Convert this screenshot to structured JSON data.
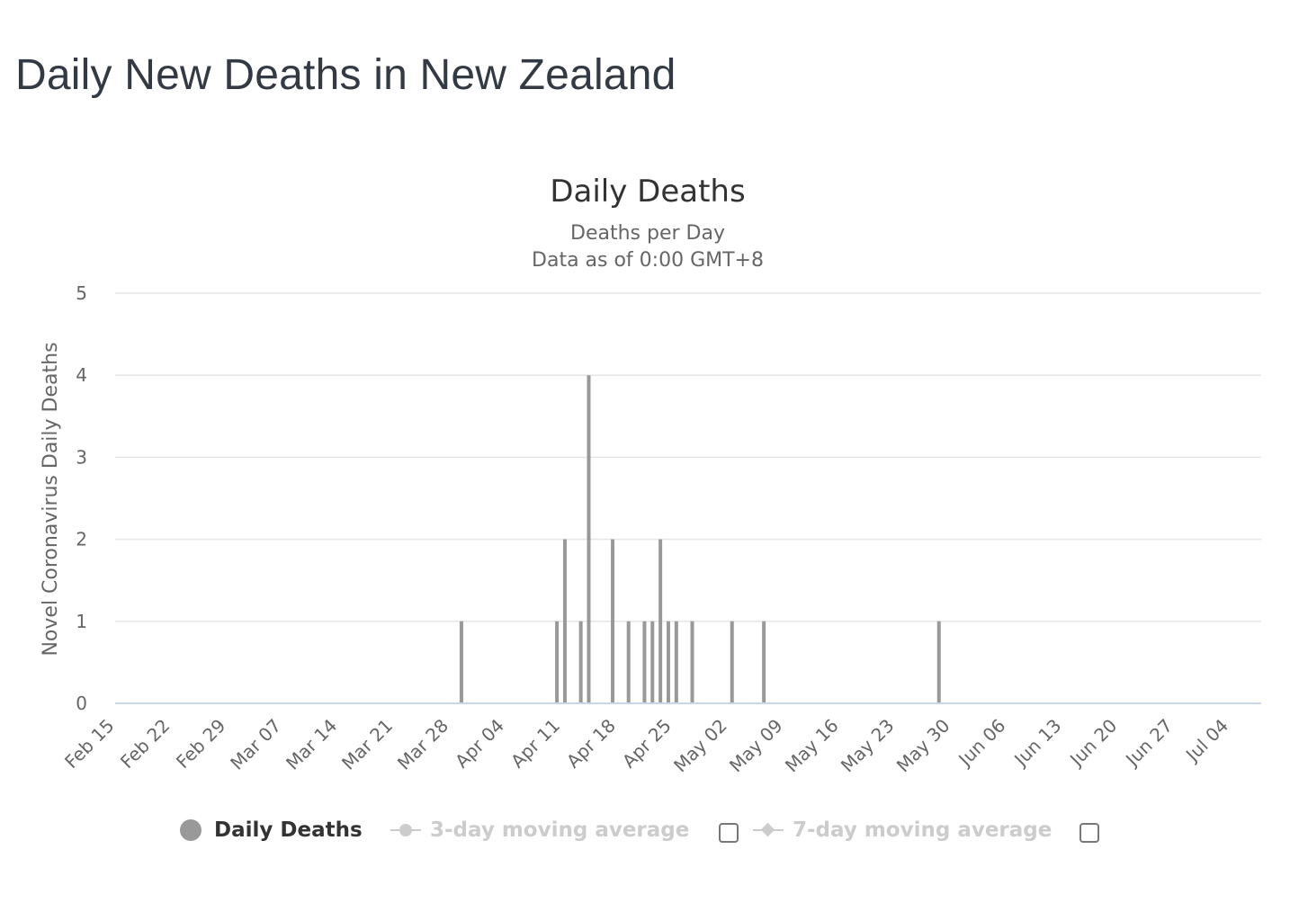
{
  "page": {
    "title": "Daily New Deaths in New Zealand"
  },
  "chart_data": {
    "type": "bar",
    "title": "Daily Deaths",
    "subtitle_lines": [
      "Deaths per Day",
      "Data as of 0:00 GMT+8"
    ],
    "xlabel": "",
    "ylabel": "Novel Coronavirus Daily Deaths",
    "ylim": [
      0,
      5
    ],
    "y_ticks": [
      0,
      1,
      2,
      3,
      4,
      5
    ],
    "x_range": [
      "2020-02-15",
      "2020-07-08"
    ],
    "x_tick_dates": [
      "2020-02-15",
      "2020-02-22",
      "2020-02-29",
      "2020-03-07",
      "2020-03-14",
      "2020-03-21",
      "2020-03-28",
      "2020-04-04",
      "2020-04-11",
      "2020-04-18",
      "2020-04-25",
      "2020-05-02",
      "2020-05-09",
      "2020-05-16",
      "2020-05-23",
      "2020-05-30",
      "2020-06-06",
      "2020-06-13",
      "2020-06-20",
      "2020-06-27",
      "2020-07-04"
    ],
    "x_tick_labels": [
      "Feb 15",
      "Feb 22",
      "Feb 29",
      "Mar 07",
      "Mar 14",
      "Mar 21",
      "Mar 28",
      "Apr 04",
      "Apr 11",
      "Apr 18",
      "Apr 25",
      "May 02",
      "May 09",
      "May 16",
      "May 23",
      "May 30",
      "Jun 06",
      "Jun 13",
      "Jun 20",
      "Jun 27",
      "Jul 04"
    ],
    "grid": true,
    "series": [
      {
        "name": "Daily Deaths",
        "color": "#999999",
        "points": [
          {
            "x": "2020-03-29",
            "y": 1
          },
          {
            "x": "2020-04-10",
            "y": 1
          },
          {
            "x": "2020-04-11",
            "y": 2
          },
          {
            "x": "2020-04-13",
            "y": 1
          },
          {
            "x": "2020-04-14",
            "y": 4
          },
          {
            "x": "2020-04-17",
            "y": 2
          },
          {
            "x": "2020-04-19",
            "y": 1
          },
          {
            "x": "2020-04-21",
            "y": 1
          },
          {
            "x": "2020-04-22",
            "y": 1
          },
          {
            "x": "2020-04-23",
            "y": 2
          },
          {
            "x": "2020-04-24",
            "y": 1
          },
          {
            "x": "2020-04-25",
            "y": 1
          },
          {
            "x": "2020-04-27",
            "y": 1
          },
          {
            "x": "2020-05-02",
            "y": 1
          },
          {
            "x": "2020-05-06",
            "y": 1
          },
          {
            "x": "2020-05-28",
            "y": 1
          }
        ]
      }
    ],
    "legend": {
      "placement": "bottom-center",
      "items": [
        {
          "label": "Daily Deaths",
          "active": true,
          "marker": "circle",
          "color": "#999999"
        },
        {
          "label": "3-day moving average",
          "active": false,
          "marker": "circle-line",
          "color": "#cccccc",
          "checked": false
        },
        {
          "label": "7-day moving average",
          "active": false,
          "marker": "diamond-line",
          "color": "#cccccc",
          "checked": false
        }
      ]
    }
  }
}
